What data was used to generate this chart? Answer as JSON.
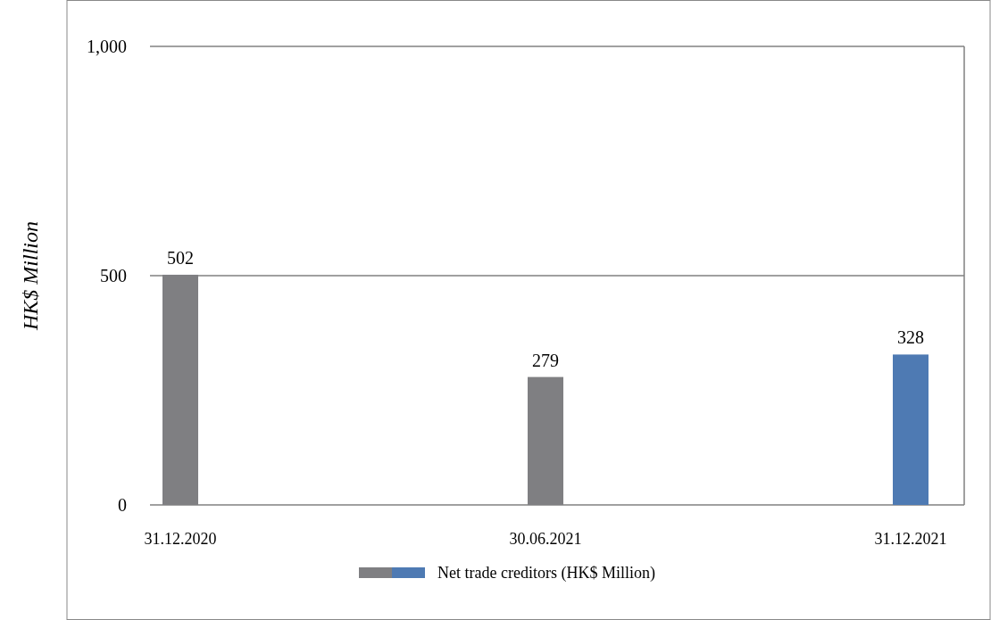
{
  "chart_data": {
    "type": "bar",
    "ylabel": "HK$ Million",
    "categories": [
      "31.12.2020",
      "30.06.2021",
      "31.12.2021"
    ],
    "series": [
      {
        "name": "Net trade creditors (HK$ Million)",
        "colors": [
          "#7f7f82",
          "#7f7f82",
          "#4e7ab3"
        ],
        "values": [
          502,
          279,
          328
        ]
      }
    ],
    "ylim": [
      0,
      1000
    ],
    "yticks": [
      0,
      {
        "value": 500,
        "label": "500"
      },
      {
        "value": 1000,
        "label": "1,000"
      }
    ],
    "grid": "y",
    "data_labels": true,
    "legend": "bottom"
  }
}
